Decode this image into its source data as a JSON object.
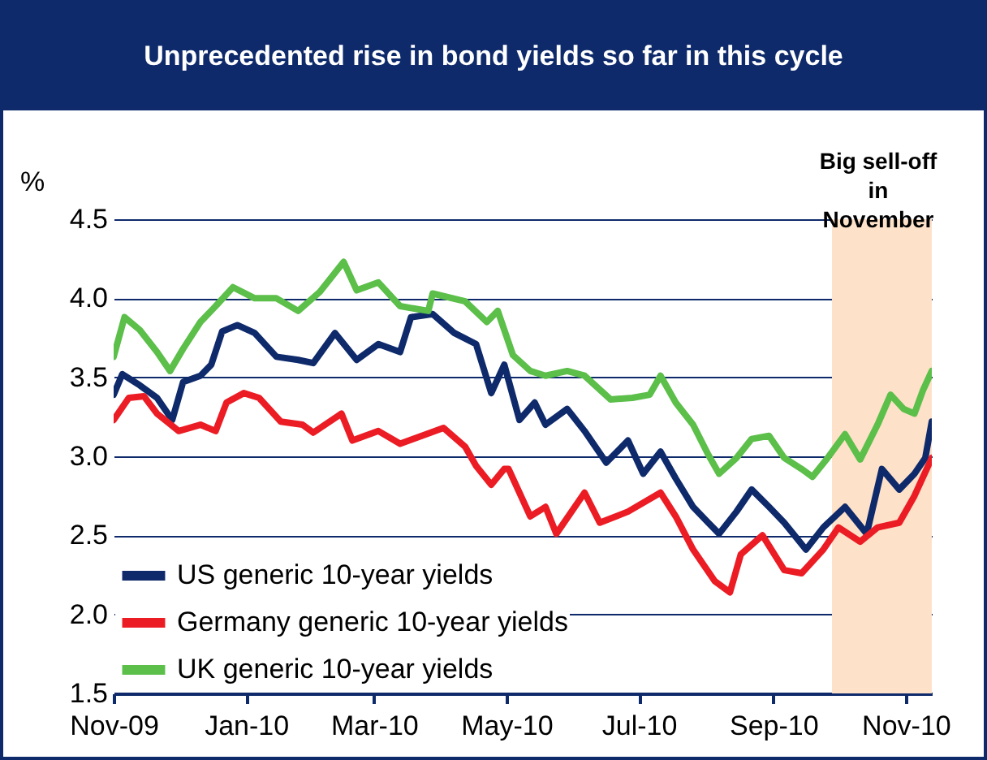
{
  "chart_data": {
    "type": "line",
    "title": "Unprecedented rise in bond yields so far in this cycle",
    "ylabel": "%",
    "annotations": [
      "Big sell-off\nin\nNovember"
    ],
    "xlim": [
      "2009-11-01",
      "2010-11-13"
    ],
    "xticks": [
      {
        "value": "2009-11-01",
        "label": "Nov-09"
      },
      {
        "value": "2010-01-01",
        "label": "Jan-10"
      },
      {
        "value": "2010-03-01",
        "label": "Mar-10"
      },
      {
        "value": "2010-05-01",
        "label": "May-10"
      },
      {
        "value": "2010-07-01",
        "label": "Jul-10"
      },
      {
        "value": "2010-09-01",
        "label": "Sep-10"
      },
      {
        "value": "2010-11-01",
        "label": "Nov-10"
      }
    ],
    "ylim": [
      1.5,
      4.5
    ],
    "yticks": [
      {
        "value": 1.5,
        "label": "1.5"
      },
      {
        "value": 2,
        "label": "2.0"
      },
      {
        "value": 2.5,
        "label": "2.5"
      },
      {
        "value": 3,
        "label": "3.0"
      },
      {
        "value": 3.5,
        "label": "3.5"
      },
      {
        "value": 4,
        "label": "4.0"
      },
      {
        "value": 4.5,
        "label": "4.5"
      }
    ],
    "grid": "y",
    "legend": "bottom left",
    "line_style": "solid",
    "marker": "none",
    "bands": [
      {
        "axis": "x",
        "from": "2010-09-28",
        "to": "2010-11-13",
        "color": "#fde1c8"
      }
    ],
    "series": [
      {
        "name": "US generic 10-year yields",
        "color": "#0e2a6b",
        "x": [
          "2009-11-01",
          "2009-11-05",
          "2009-11-13",
          "2009-11-21",
          "2009-11-28",
          "2009-12-03",
          "2009-12-11",
          "2009-12-16",
          "2009-12-21",
          "2009-12-28",
          "2010-01-05",
          "2010-01-15",
          "2010-01-25",
          "2010-02-01",
          "2010-02-11",
          "2010-02-21",
          "2010-03-03",
          "2010-03-13",
          "2010-03-18",
          "2010-03-28",
          "2010-04-07",
          "2010-04-17",
          "2010-04-24",
          "2010-04-30",
          "2010-05-07",
          "2010-05-14",
          "2010-05-19",
          "2010-05-29",
          "2010-06-06",
          "2010-06-16",
          "2010-06-26",
          "2010-07-03",
          "2010-07-11",
          "2010-07-18",
          "2010-07-26",
          "2010-08-02",
          "2010-08-07",
          "2010-08-15",
          "2010-08-22",
          "2010-08-30",
          "2010-09-06",
          "2010-09-16",
          "2010-09-24",
          "2010-10-04",
          "2010-10-14",
          "2010-10-21",
          "2010-10-29",
          "2010-11-05",
          "2010-11-10",
          "2010-11-13"
        ],
        "values": [
          3.39,
          3.52,
          3.45,
          3.37,
          3.23,
          3.47,
          3.51,
          3.58,
          3.79,
          3.83,
          3.78,
          3.63,
          3.61,
          3.59,
          3.78,
          3.61,
          3.71,
          3.66,
          3.88,
          3.9,
          3.78,
          3.71,
          3.4,
          3.58,
          3.23,
          3.34,
          3.2,
          3.3,
          3.16,
          2.96,
          3.1,
          2.89,
          3.03,
          2.86,
          2.68,
          2.58,
          2.51,
          2.65,
          2.79,
          2.68,
          2.58,
          2.41,
          2.55,
          2.68,
          2.51,
          2.92,
          2.79,
          2.89,
          2.99,
          3.22
        ]
      },
      {
        "name": "Germany generic 10-year yields",
        "color": "#ec1c24",
        "x": [
          "2009-11-01",
          "2009-11-08",
          "2009-11-15",
          "2009-11-21",
          "2009-12-01",
          "2009-12-11",
          "2009-12-18",
          "2009-12-23",
          "2009-12-31",
          "2010-01-07",
          "2010-01-17",
          "2010-01-27",
          "2010-02-01",
          "2010-02-14",
          "2010-02-19",
          "2010-03-03",
          "2010-03-13",
          "2010-03-23",
          "2010-04-02",
          "2010-04-12",
          "2010-04-17",
          "2010-04-24",
          "2010-04-30",
          "2010-05-02",
          "2010-05-12",
          "2010-05-19",
          "2010-05-24",
          "2010-06-06",
          "2010-06-13",
          "2010-06-26",
          "2010-07-11",
          "2010-07-18",
          "2010-07-26",
          "2010-08-05",
          "2010-08-12",
          "2010-08-17",
          "2010-08-27",
          "2010-09-06",
          "2010-09-14",
          "2010-09-24",
          "2010-10-01",
          "2010-10-11",
          "2010-10-19",
          "2010-10-29",
          "2010-11-05",
          "2010-11-13"
        ],
        "values": [
          3.23,
          3.37,
          3.38,
          3.27,
          3.16,
          3.2,
          3.16,
          3.34,
          3.4,
          3.37,
          3.22,
          3.2,
          3.15,
          3.27,
          3.1,
          3.16,
          3.08,
          3.13,
          3.18,
          3.06,
          2.94,
          2.82,
          2.92,
          2.92,
          2.62,
          2.68,
          2.51,
          2.77,
          2.58,
          2.65,
          2.77,
          2.62,
          2.41,
          2.21,
          2.14,
          2.38,
          2.5,
          2.28,
          2.26,
          2.41,
          2.55,
          2.46,
          2.55,
          2.58,
          2.75,
          2.99
        ]
      },
      {
        "name": "UK generic 10-year yields",
        "color": "#5cbf4a",
        "x": [
          "2009-11-01",
          "2009-11-06",
          "2009-11-13",
          "2009-11-21",
          "2009-11-27",
          "2009-12-03",
          "2009-12-11",
          "2009-12-18",
          "2009-12-26",
          "2010-01-05",
          "2010-01-15",
          "2010-01-25",
          "2010-02-04",
          "2010-02-15",
          "2010-02-21",
          "2010-03-03",
          "2010-03-13",
          "2010-03-26",
          "2010-03-28",
          "2010-04-12",
          "2010-04-22",
          "2010-04-27",
          "2010-05-04",
          "2010-05-12",
          "2010-05-19",
          "2010-05-29",
          "2010-06-06",
          "2010-06-18",
          "2010-06-28",
          "2010-07-06",
          "2010-07-11",
          "2010-07-18",
          "2010-07-26",
          "2010-08-02",
          "2010-08-07",
          "2010-08-15",
          "2010-08-22",
          "2010-08-30",
          "2010-09-06",
          "2010-09-14",
          "2010-09-19",
          "2010-09-26",
          "2010-10-04",
          "2010-10-11",
          "2010-10-19",
          "2010-10-25",
          "2010-10-31",
          "2010-11-05",
          "2010-11-09",
          "2010-11-13"
        ],
        "values": [
          3.63,
          3.88,
          3.8,
          3.66,
          3.54,
          3.68,
          3.85,
          3.95,
          4.07,
          4.0,
          4.0,
          3.92,
          4.04,
          4.23,
          4.05,
          4.1,
          3.95,
          3.92,
          4.03,
          3.98,
          3.85,
          3.92,
          3.64,
          3.54,
          3.51,
          3.54,
          3.51,
          3.36,
          3.37,
          3.39,
          3.51,
          3.34,
          3.2,
          3.01,
          2.89,
          2.99,
          3.11,
          3.13,
          2.99,
          2.92,
          2.87,
          2.99,
          3.14,
          2.98,
          3.2,
          3.39,
          3.3,
          3.27,
          3.42,
          3.54
        ]
      }
    ]
  }
}
